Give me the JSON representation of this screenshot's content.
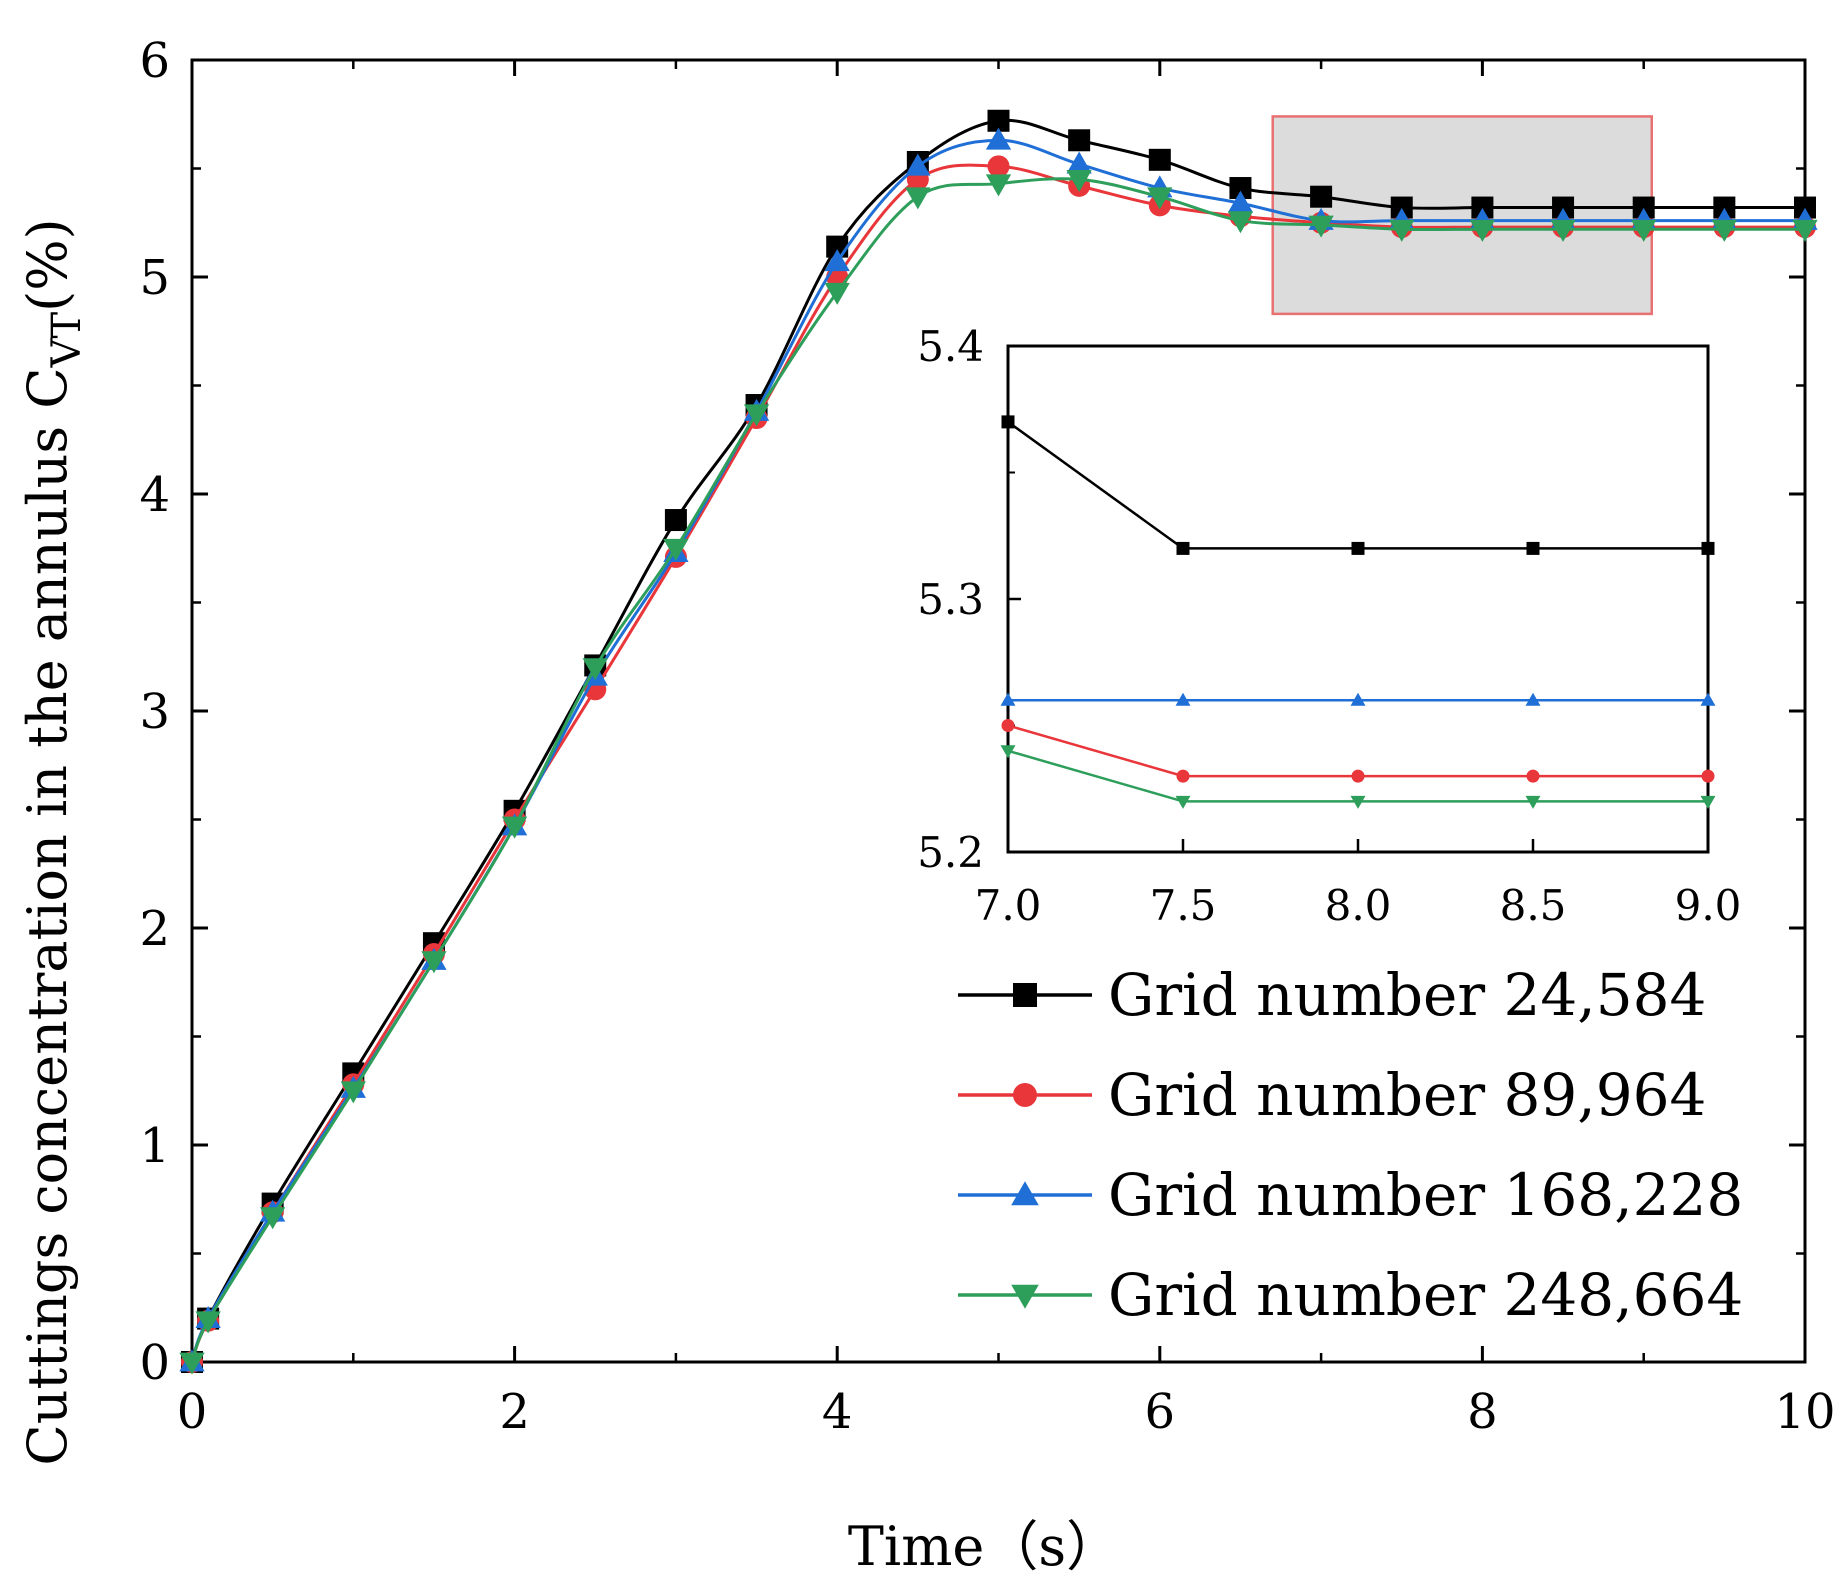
{
  "chart_data": {
    "type": "line",
    "title": "",
    "xlabel": "Time（s）",
    "ylabel": "Cuttings concentration in the annulus C",
    "ylabel_subscript": "VT",
    "ylabel_suffix": "(%)",
    "xlim": [
      0,
      10
    ],
    "ylim": [
      0,
      6
    ],
    "xticks": [
      "0",
      "2",
      "4",
      "6",
      "8",
      "10"
    ],
    "yticks": [
      "0",
      "1",
      "2",
      "3",
      "4",
      "5",
      "6"
    ],
    "grid": false,
    "legend_position": "bottom-right",
    "series": [
      {
        "name": "Grid number 24,584",
        "color": "#000000",
        "marker": "square",
        "x": [
          0,
          0.1,
          0.5,
          1,
          1.5,
          2,
          2.5,
          3,
          3.5,
          4,
          4.5,
          5,
          5.5,
          6,
          6.5,
          7,
          7.5,
          8,
          8.5,
          9,
          9.5,
          10
        ],
        "y": [
          0,
          0.2,
          0.73,
          1.33,
          1.93,
          2.54,
          3.21,
          3.88,
          4.41,
          5.14,
          5.53,
          5.72,
          5.63,
          5.54,
          5.41,
          5.37,
          5.32,
          5.32,
          5.32,
          5.32,
          5.32,
          5.32
        ]
      },
      {
        "name": "Grid number 89,964",
        "color": "#e8363a",
        "marker": "circle",
        "x": [
          0,
          0.1,
          0.5,
          1,
          1.5,
          2,
          2.5,
          3,
          3.5,
          4,
          4.5,
          5,
          5.5,
          6,
          6.5,
          7,
          7.5,
          8,
          8.5,
          9,
          9.5,
          10
        ],
        "y": [
          0,
          0.19,
          0.69,
          1.28,
          1.88,
          2.5,
          3.1,
          3.71,
          4.35,
          5.0,
          5.45,
          5.51,
          5.42,
          5.33,
          5.28,
          5.25,
          5.23,
          5.23,
          5.23,
          5.23,
          5.23,
          5.23
        ]
      },
      {
        "name": "Grid number 168,228",
        "color": "#1f6fd6",
        "marker": "triangle-up",
        "x": [
          0,
          0.1,
          0.5,
          1,
          1.5,
          2,
          2.5,
          3,
          3.5,
          4,
          4.5,
          5,
          5.5,
          6,
          6.5,
          7,
          7.5,
          8,
          8.5,
          9,
          9.5,
          10
        ],
        "y": [
          0,
          0.2,
          0.69,
          1.26,
          1.85,
          2.47,
          3.16,
          3.73,
          4.38,
          5.07,
          5.51,
          5.63,
          5.52,
          5.41,
          5.34,
          5.26,
          5.26,
          5.26,
          5.26,
          5.26,
          5.26,
          5.26
        ]
      },
      {
        "name": "Grid number 248,664",
        "color": "#2e9e5b",
        "marker": "triangle-down",
        "x": [
          0,
          0.1,
          0.5,
          1,
          1.5,
          2,
          2.5,
          3,
          3.5,
          4,
          4.5,
          5,
          5.5,
          6,
          6.5,
          7,
          7.5,
          8,
          8.5,
          9,
          9.5,
          10
        ],
        "y": [
          0,
          0.19,
          0.67,
          1.25,
          1.85,
          2.47,
          3.2,
          3.75,
          4.37,
          4.93,
          5.37,
          5.43,
          5.45,
          5.37,
          5.26,
          5.24,
          5.22,
          5.22,
          5.22,
          5.22,
          5.22,
          5.22
        ]
      }
    ],
    "highlight_region": {
      "x": [
        6.7,
        9.05
      ],
      "y": [
        4.83,
        5.74
      ],
      "fill": "#dcdcdc",
      "stroke": "#e87070"
    },
    "inset": {
      "xlim": [
        7.0,
        9.0
      ],
      "ylim": [
        5.2,
        5.4
      ],
      "xticks": [
        "7.0",
        "7.5",
        "8.0",
        "8.5",
        "9.0"
      ],
      "yticks": [
        "5.2",
        "5.3",
        "5.4"
      ],
      "x": [
        7.0,
        7.5,
        8.0,
        8.5,
        9.0
      ],
      "series_y": [
        [
          5.37,
          5.32,
          5.32,
          5.32,
          5.32
        ],
        [
          5.25,
          5.23,
          5.23,
          5.23,
          5.23
        ],
        [
          5.26,
          5.26,
          5.26,
          5.26,
          5.26
        ],
        [
          5.24,
          5.22,
          5.22,
          5.22,
          5.22
        ]
      ]
    }
  }
}
